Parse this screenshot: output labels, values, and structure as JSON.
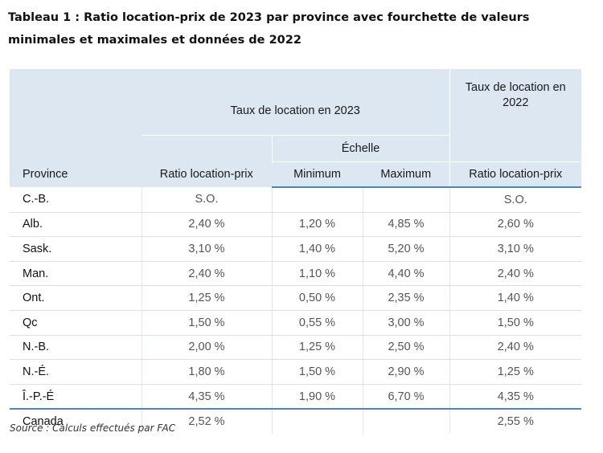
{
  "caption": "Tableau 1 : Ratio location-prix de 2023 par province avec fourchette de valeurs minimales et maximales et données de 2022",
  "headers": {
    "province": "Province",
    "group_2023": "Taux de location en 2023",
    "group_2022": "Taux de location en 2022",
    "scale": "Échelle",
    "ratio_2023": "Ratio location-prix",
    "minimum": "Minimum",
    "maximum": "Maximum",
    "ratio_2022": "Ratio location-prix"
  },
  "rows": [
    {
      "province": "C.-B.",
      "ratio_2023": "S.O.",
      "min": "",
      "max": "",
      "ratio_2022": "S.O."
    },
    {
      "province": "Alb.",
      "ratio_2023": "2,40 %",
      "min": "1,20 %",
      "max": "4,85 %",
      "ratio_2022": "2,60 %"
    },
    {
      "province": "Sask.",
      "ratio_2023": "3,10 %",
      "min": "1,40 %",
      "max": "5,20 %",
      "ratio_2022": "3,10 %"
    },
    {
      "province": "Man.",
      "ratio_2023": "2,40 %",
      "min": "1,10 %",
      "max": "4,40 %",
      "ratio_2022": "2,40 %"
    },
    {
      "province": "Ont.",
      "ratio_2023": "1,25 %",
      "min": "0,50 %",
      "max": "2,35 %",
      "ratio_2022": "1,40 %"
    },
    {
      "province": "Qc",
      "ratio_2023": "1,50 %",
      "min": "0,55 %",
      "max": "3,00 %",
      "ratio_2022": "1,50 %"
    },
    {
      "province": "N.-B.",
      "ratio_2023": "2,00 %",
      "min": "1,25 %",
      "max": "2,50 %",
      "ratio_2022": "2,40 %"
    },
    {
      "province": "N.-É.",
      "ratio_2023": "1,80 %",
      "min": "1,50 %",
      "max": "2,90 %",
      "ratio_2022": "1,25 %"
    },
    {
      "province": "Î.-P.-É",
      "ratio_2023": "4,35 %",
      "min": "1,90 %",
      "max": "6,70 %",
      "ratio_2022": "4,35 %"
    },
    {
      "province": "Canada",
      "ratio_2023": "2,52 %",
      "min": "",
      "max": "",
      "ratio_2022": "2,55 %"
    }
  ],
  "source": "Source : Calculs effectués par FAC",
  "colors": {
    "header_bg": "#dce7f1",
    "accent_rule": "#4d87b8"
  }
}
